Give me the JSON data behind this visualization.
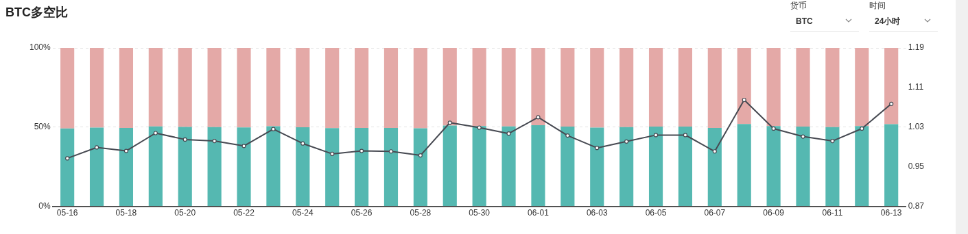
{
  "chart_data": {
    "type": "bar",
    "title": "BTC多空比",
    "categories": [
      "05-16",
      null,
      "05-18",
      null,
      "05-20",
      null,
      "05-22",
      null,
      "05-24",
      null,
      "05-26",
      null,
      "05-28",
      null,
      "05-30",
      null,
      "06-01",
      null,
      "06-03",
      null,
      "06-05",
      null,
      "06-07",
      null,
      "06-09",
      null,
      "06-11",
      null,
      "06-13"
    ],
    "stacked": true,
    "series": [
      {
        "color": "#55b8b1",
        "values": [
          49.2,
          49.7,
          49.5,
          50.4,
          50.1,
          50.0,
          49.8,
          50.6,
          49.9,
          49.4,
          49.5,
          49.5,
          49.3,
          51.0,
          50.7,
          50.4,
          51.2,
          50.3,
          49.7,
          50.0,
          50.3,
          50.3,
          49.5,
          52.0,
          50.7,
          50.3,
          50.0,
          50.7,
          51.9
        ]
      },
      {
        "color": "#e4a9a7",
        "values": [
          50.8,
          50.3,
          50.5,
          49.6,
          49.9,
          50.0,
          50.2,
          49.4,
          50.1,
          50.6,
          50.5,
          50.5,
          50.7,
          49.0,
          49.3,
          49.6,
          48.8,
          49.7,
          50.3,
          50.0,
          49.7,
          49.7,
          50.5,
          48.0,
          49.3,
          49.7,
          50.0,
          49.3,
          48.1
        ]
      },
      {
        "type": "line",
        "axis": "y2",
        "color": "#474a52",
        "values": [
          0.967,
          0.989,
          0.982,
          1.018,
          1.005,
          1.002,
          0.992,
          1.026,
          0.997,
          0.976,
          0.982,
          0.981,
          0.973,
          1.039,
          1.029,
          1.017,
          1.05,
          1.013,
          0.988,
          1.001,
          1.014,
          1.014,
          0.981,
          1.085,
          1.027,
          1.011,
          1.002,
          1.027,
          1.077
        ]
      }
    ],
    "ylim": [
      0,
      100
    ],
    "yticks": [
      {
        "value": 0,
        "label": "0%"
      },
      {
        "value": 50,
        "label": "50%"
      },
      {
        "value": 100,
        "label": "100%"
      }
    ],
    "y2lim": [
      0.87,
      1.19
    ],
    "y2ticks": [
      0.87,
      0.95,
      1.03,
      1.11,
      1.19
    ],
    "grid": "y",
    "legend": false,
    "marker": "circle",
    "line_style": "solid",
    "annotations": [
      "货币",
      "BTC",
      "时间",
      "24小时"
    ]
  }
}
